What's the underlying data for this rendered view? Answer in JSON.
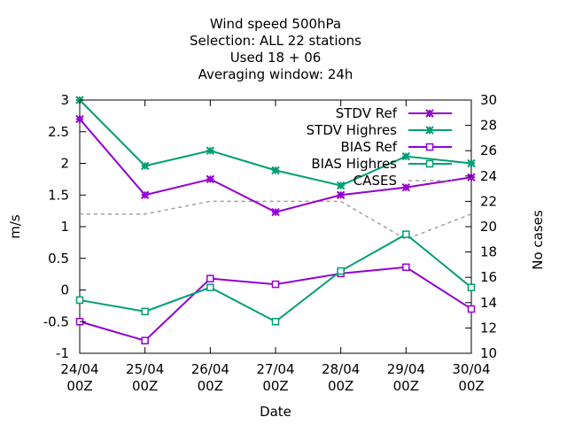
{
  "chart_data": {
    "type": "line",
    "title": [
      "Wind speed 500hPa",
      "Selection: ALL      22 stations",
      "Used  18 + 06",
      "Averaging window: 24h"
    ],
    "xlabel": "Date",
    "ylabel": "m/s",
    "y2label": "No cases",
    "categories": [
      [
        "24/04",
        "00Z"
      ],
      [
        "25/04",
        "00Z"
      ],
      [
        "26/04",
        "00Z"
      ],
      [
        "27/04",
        "00Z"
      ],
      [
        "28/04",
        "00Z"
      ],
      [
        "29/04",
        "00Z"
      ],
      [
        "30/04",
        "00Z"
      ]
    ],
    "ylim": [
      -1,
      3
    ],
    "yticks": [
      -1,
      -0.5,
      0,
      0.5,
      1,
      1.5,
      2,
      2.5,
      3
    ],
    "y2lim": [
      10,
      30
    ],
    "y2ticks": [
      10,
      12,
      14,
      16,
      18,
      20,
      22,
      24,
      26,
      28,
      30
    ],
    "legend_position": "top-right",
    "series": [
      {
        "name": "STDV Ref",
        "axis": "y1",
        "color": "#9400d3",
        "marker": "x",
        "dash": false,
        "values": [
          2.7,
          1.5,
          1.75,
          1.23,
          1.5,
          1.62,
          1.78
        ]
      },
      {
        "name": "STDV Highres",
        "axis": "y1",
        "color": "#009e73",
        "marker": "x",
        "dash": false,
        "values": [
          3.0,
          1.96,
          2.2,
          1.89,
          1.65,
          2.11,
          2.0
        ]
      },
      {
        "name": "BIAS Ref",
        "axis": "y1",
        "color": "#9400d3",
        "marker": "square",
        "dash": false,
        "values": [
          -0.5,
          -0.8,
          0.18,
          0.09,
          0.26,
          0.36,
          -0.3
        ]
      },
      {
        "name": "BIAS Highres",
        "axis": "y1",
        "color": "#009e73",
        "marker": "square",
        "dash": false,
        "values": [
          -0.16,
          -0.34,
          0.04,
          -0.5,
          0.3,
          0.88,
          0.04
        ]
      },
      {
        "name": "CASES",
        "axis": "y2",
        "color": "#a0a0a0",
        "marker": "none",
        "dash": true,
        "values": [
          21,
          21,
          22,
          22,
          22,
          19,
          21
        ]
      }
    ]
  }
}
